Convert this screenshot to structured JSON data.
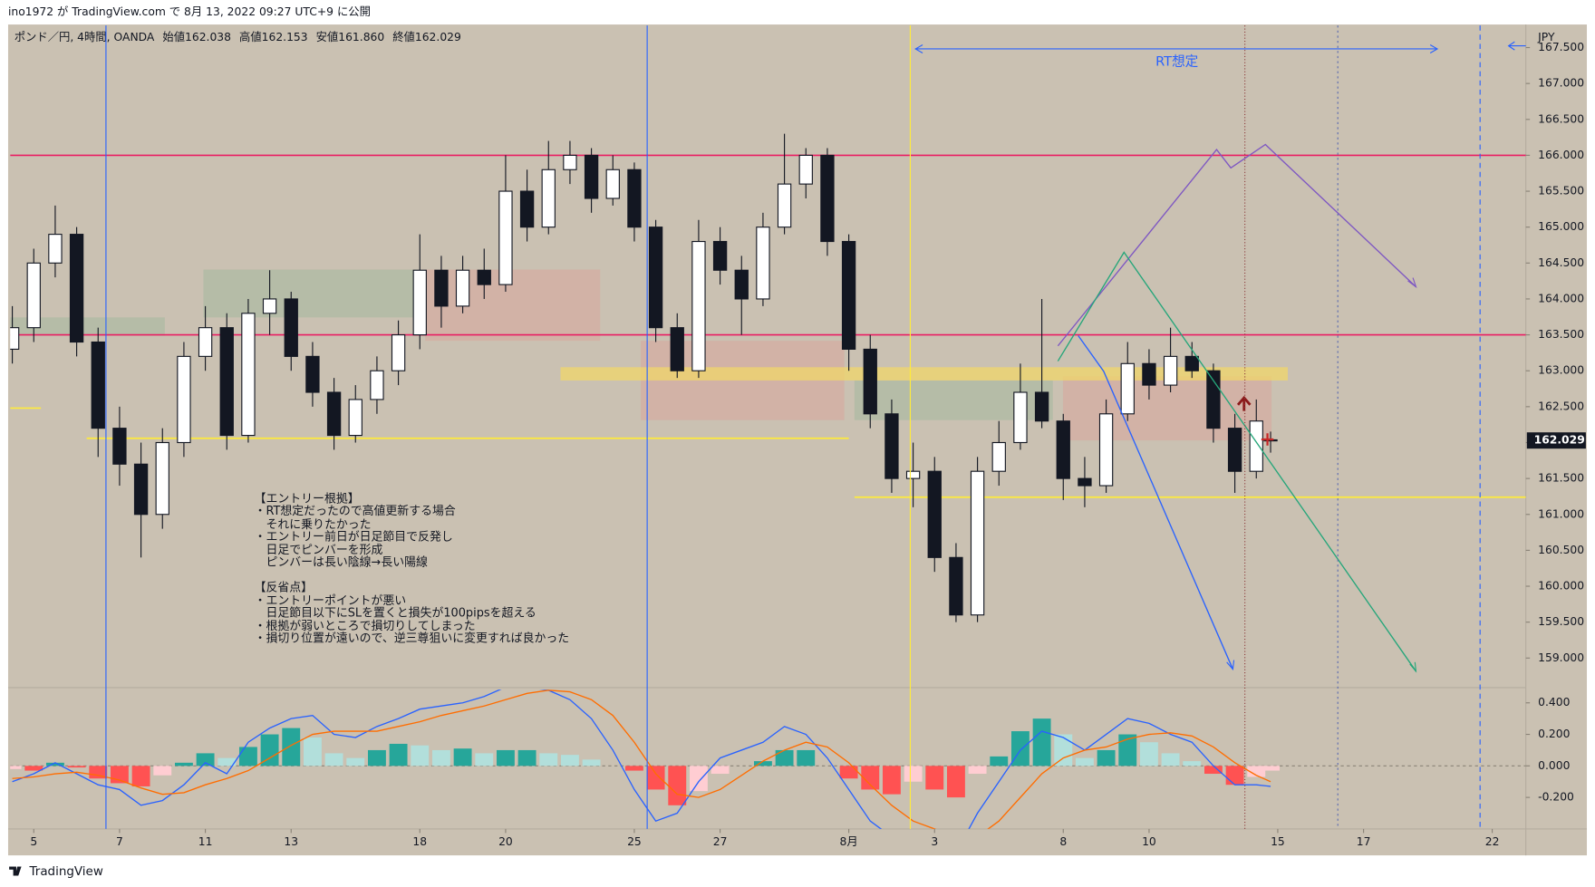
{
  "header": {
    "publisher": "ino1972 が TradingView.com で 8月 13, 2022 09:27 UTC+9 に公開",
    "brand": "TradingView"
  },
  "chart_data": {
    "type": "candlestick",
    "title": "ポンド／円, 4時間, OANDA",
    "ohlc_labels": [
      "始値162.038",
      "高値162.153",
      "安値161.860",
      "終値162.029"
    ],
    "currency": "JPY",
    "up_color": "#ffffff",
    "down_color": "#131722",
    "xlim": [
      -3.3,
      208.7
    ],
    "xticks": [
      {
        "value": 0,
        "label": "5"
      },
      {
        "value": 12,
        "label": "7"
      },
      {
        "value": 24,
        "label": "11"
      },
      {
        "value": 36,
        "label": "13"
      },
      {
        "value": 54,
        "label": "18"
      },
      {
        "value": 66,
        "label": "20"
      },
      {
        "value": 84,
        "label": "25"
      },
      {
        "value": 96,
        "label": "27"
      },
      {
        "value": 114,
        "label": "8月"
      },
      {
        "value": 126,
        "label": "3"
      },
      {
        "value": 144,
        "label": "8"
      },
      {
        "value": 156,
        "label": "10"
      },
      {
        "value": 174,
        "label": "15"
      },
      {
        "value": 186,
        "label": "17"
      },
      {
        "value": 204,
        "label": "22"
      }
    ],
    "ylim": [
      158.603,
      167.807
    ],
    "yticks": [
      {
        "value": 159,
        "label": "159.000"
      },
      {
        "value": 159.5,
        "label": "159.500"
      },
      {
        "value": 160,
        "label": "160.000"
      },
      {
        "value": 160.5,
        "label": "160.500"
      },
      {
        "value": 161,
        "label": "161.000"
      },
      {
        "value": 161.5,
        "label": "161.500"
      },
      {
        "value": 162,
        "label": "162.000"
      },
      {
        "value": 162.5,
        "label": "162.500"
      },
      {
        "value": 163,
        "label": "163.000"
      },
      {
        "value": 163.5,
        "label": "163.500"
      },
      {
        "value": 164,
        "label": "164.000"
      },
      {
        "value": 164.5,
        "label": "164.500"
      },
      {
        "value": 165,
        "label": "165.000"
      },
      {
        "value": 165.5,
        "label": "165.500"
      },
      {
        "value": 166,
        "label": "166.000"
      },
      {
        "value": 166.5,
        "label": "166.500"
      },
      {
        "value": 167,
        "label": "167.000"
      },
      {
        "value": 167.5,
        "label": "167.500"
      }
    ],
    "x": [
      -3,
      0,
      3,
      6,
      9,
      12,
      15,
      18,
      21,
      24,
      27,
      30,
      33,
      36,
      39,
      42,
      45,
      48,
      51,
      54,
      57,
      60,
      63,
      66,
      69,
      72,
      75,
      78,
      81,
      84,
      87,
      90,
      93,
      96,
      99,
      102,
      105,
      108,
      111,
      114,
      117,
      120,
      123,
      126,
      129,
      132,
      135,
      138,
      141,
      144,
      147,
      150,
      153,
      156,
      159,
      162,
      165,
      168,
      171,
      173
    ],
    "candles": [
      [
        163.3,
        163.9,
        163.1,
        163.6
      ],
      [
        163.6,
        164.7,
        163.4,
        164.5
      ],
      [
        164.5,
        165.3,
        164.3,
        164.9
      ],
      [
        164.9,
        165.0,
        163.2,
        163.4
      ],
      [
        163.4,
        163.6,
        161.8,
        162.2
      ],
      [
        162.2,
        162.5,
        161.4,
        161.7
      ],
      [
        161.7,
        162.0,
        160.4,
        161.0
      ],
      [
        161.0,
        162.2,
        160.8,
        162.0
      ],
      [
        162.0,
        163.4,
        161.8,
        163.2
      ],
      [
        163.2,
        163.9,
        163.0,
        163.6
      ],
      [
        163.6,
        163.8,
        161.9,
        162.1
      ],
      [
        162.1,
        164.0,
        162.0,
        163.8
      ],
      [
        163.8,
        164.4,
        163.5,
        164.0
      ],
      [
        164.0,
        164.1,
        163.0,
        163.2
      ],
      [
        163.2,
        163.4,
        162.5,
        162.7
      ],
      [
        162.7,
        162.9,
        161.9,
        162.1
      ],
      [
        162.1,
        162.8,
        162.0,
        162.6
      ],
      [
        162.6,
        163.2,
        162.4,
        163.0
      ],
      [
        163.0,
        163.7,
        162.8,
        163.5
      ],
      [
        163.5,
        164.9,
        163.3,
        164.4
      ],
      [
        164.4,
        164.6,
        163.6,
        163.9
      ],
      [
        163.9,
        164.6,
        163.8,
        164.4
      ],
      [
        164.4,
        164.7,
        164.0,
        164.2
      ],
      [
        164.2,
        166.0,
        164.1,
        165.5
      ],
      [
        165.5,
        165.8,
        164.8,
        165.0
      ],
      [
        165.0,
        166.2,
        164.9,
        165.8
      ],
      [
        165.8,
        166.2,
        165.6,
        166.0
      ],
      [
        166.0,
        166.1,
        165.2,
        165.4
      ],
      [
        165.4,
        166.0,
        165.3,
        165.8
      ],
      [
        165.8,
        165.9,
        164.8,
        165.0
      ],
      [
        165.0,
        165.1,
        163.4,
        163.6
      ],
      [
        163.6,
        163.8,
        162.9,
        163.0
      ],
      [
        163.0,
        165.1,
        162.9,
        164.8
      ],
      [
        164.8,
        165.0,
        164.2,
        164.4
      ],
      [
        164.4,
        164.6,
        163.5,
        164.0
      ],
      [
        164.0,
        165.2,
        163.9,
        165.0
      ],
      [
        165.0,
        166.3,
        164.9,
        165.6
      ],
      [
        165.6,
        166.1,
        165.4,
        166.0
      ],
      [
        166.0,
        166.1,
        164.6,
        164.8
      ],
      [
        164.8,
        164.9,
        163.0,
        163.3
      ],
      [
        163.3,
        163.5,
        162.2,
        162.4
      ],
      [
        162.4,
        162.6,
        161.3,
        161.5
      ],
      [
        161.5,
        162.0,
        161.1,
        161.6
      ],
      [
        161.6,
        161.8,
        160.2,
        160.4
      ],
      [
        160.4,
        160.6,
        159.5,
        159.6
      ],
      [
        159.6,
        161.8,
        159.5,
        161.6
      ],
      [
        161.6,
        162.3,
        161.4,
        162.0
      ],
      [
        162.0,
        163.1,
        161.9,
        162.7
      ],
      [
        162.7,
        164.0,
        162.2,
        162.3
      ],
      [
        162.3,
        162.4,
        161.2,
        161.5
      ],
      [
        161.5,
        161.8,
        161.1,
        161.4
      ],
      [
        161.4,
        162.6,
        161.3,
        162.4
      ],
      [
        162.4,
        163.4,
        162.3,
        163.1
      ],
      [
        163.1,
        163.3,
        162.6,
        162.8
      ],
      [
        162.8,
        163.6,
        162.7,
        163.2
      ],
      [
        163.2,
        163.4,
        162.9,
        163.0
      ],
      [
        163.0,
        163.1,
        162.0,
        162.2
      ],
      [
        162.2,
        162.4,
        161.3,
        161.6
      ],
      [
        161.6,
        162.6,
        161.5,
        162.3
      ],
      [
        162.038,
        162.153,
        161.86,
        162.029
      ]
    ],
    "hlines": [
      {
        "value": 166.0,
        "color": "#e91e63",
        "from": -3.3,
        "to": 208.7
      },
      {
        "value": 163.5,
        "color": "#e91e63",
        "from": -3.3,
        "to": 208.7
      },
      {
        "value": 162.48,
        "color": "#ffeb3b",
        "from": -3.3,
        "to": 1.0
      },
      {
        "value": 162.06,
        "color": "#ffeb3b",
        "from": 7.4,
        "to": 114
      },
      {
        "value": 161.24,
        "color": "#ffeb3b",
        "from": 114.8,
        "to": 208.7
      }
    ],
    "vlines": [
      {
        "value": 10.1,
        "color": "#2962ff",
        "dash": "none"
      },
      {
        "value": 85.8,
        "color": "#2962ff",
        "dash": "none"
      },
      {
        "value": 122.6,
        "color": "#ffeb3b",
        "dash": "none"
      },
      {
        "value": 169.4,
        "color": "#8d3b3b",
        "dash": "1,2"
      },
      {
        "value": 182.4,
        "color": "#5b6bb0",
        "dash": "2,3"
      },
      {
        "value": 202.3,
        "color": "#2962ff",
        "dash": "5,4"
      }
    ],
    "annotations": {
      "rt": "RT想定",
      "notes": [
        "【エントリー根拠】",
        "・RT想定だったので高値更新する場合",
        "　それに乗りたかった",
        "・エントリー前日が日足節目で反発し",
        "　日足でピンバーを形成",
        "　ピンバーは長い陰線→長い陽線",
        "【反省点】",
        "・エントリーポイントが悪い",
        "　日足節目以下にSLを置くと損失が100pipsを超える",
        "・根拠が弱いところで損切りしてしまった",
        "・損切り位置が遠いので、逆三尊狙いに変更すれば良かった"
      ]
    },
    "macd": {
      "ylim": [
        -0.4,
        0.484
      ],
      "yticks": [
        {
          "value": 0.4,
          "label": "0.400"
        },
        {
          "value": 0.2,
          "label": "0.200"
        },
        {
          "value": 0,
          "label": "0.000"
        },
        {
          "value": -0.2,
          "label": "-0.200"
        }
      ],
      "macd_color": "#2962ff",
      "signal_color": "#ff6d00",
      "histogram_colors": [
        "#26a69a",
        "#b2dfdb",
        "#ffcdd2",
        "#ff5252"
      ],
      "histogram": [
        -0.02,
        -0.03,
        0.02,
        -0.01,
        -0.08,
        -0.11,
        -0.13,
        -0.06,
        0.02,
        0.08,
        0.05,
        0.12,
        0.2,
        0.24,
        0.18,
        0.08,
        0.05,
        0.1,
        0.14,
        0.13,
        0.1,
        0.11,
        0.08,
        0.1,
        0.1,
        0.08,
        0.07,
        0.04,
        0.0,
        -0.03,
        -0.15,
        -0.25,
        -0.16,
        -0.05,
        0.0,
        0.03,
        0.1,
        0.1,
        0.0,
        -0.08,
        -0.15,
        -0.18,
        -0.1,
        -0.15,
        -0.2,
        -0.05,
        0.06,
        0.22,
        0.3,
        0.2,
        0.05,
        0.1,
        0.2,
        0.15,
        0.08,
        0.03,
        -0.05,
        -0.12,
        -0.07,
        -0.03
      ],
      "macd": [
        -0.1,
        -0.05,
        0.02,
        -0.05,
        -0.12,
        -0.15,
        -0.25,
        -0.22,
        -0.12,
        0.02,
        -0.05,
        0.15,
        0.24,
        0.3,
        0.32,
        0.2,
        0.18,
        0.25,
        0.3,
        0.36,
        0.38,
        0.4,
        0.44,
        0.5,
        0.5,
        0.48,
        0.42,
        0.3,
        0.1,
        -0.15,
        -0.35,
        -0.3,
        -0.1,
        0.05,
        0.1,
        0.15,
        0.25,
        0.2,
        0.05,
        -0.15,
        -0.35,
        -0.45,
        -0.45,
        -0.5,
        -0.55,
        -0.3,
        -0.1,
        0.1,
        0.22,
        0.18,
        0.1,
        0.2,
        0.3,
        0.27,
        0.2,
        0.15,
        0.0,
        -0.12,
        -0.12,
        -0.13
      ],
      "signal": [
        -0.08,
        -0.07,
        -0.05,
        -0.04,
        -0.06,
        -0.09,
        -0.14,
        -0.18,
        -0.17,
        -0.12,
        -0.08,
        -0.03,
        0.05,
        0.13,
        0.2,
        0.22,
        0.22,
        0.22,
        0.25,
        0.28,
        0.32,
        0.35,
        0.38,
        0.42,
        0.46,
        0.48,
        0.47,
        0.42,
        0.32,
        0.15,
        -0.05,
        -0.18,
        -0.2,
        -0.15,
        -0.06,
        0.03,
        0.1,
        0.15,
        0.12,
        0.02,
        -0.12,
        -0.25,
        -0.35,
        -0.4,
        -0.45,
        -0.45,
        -0.35,
        -0.2,
        -0.05,
        0.05,
        0.1,
        0.12,
        0.17,
        0.2,
        0.21,
        0.19,
        0.12,
        0.02,
        -0.06,
        -0.1
      ]
    }
  }
}
